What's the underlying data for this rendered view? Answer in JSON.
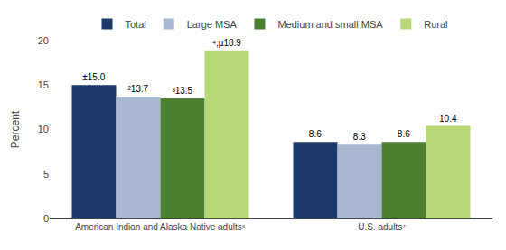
{
  "chart_data": {
    "type": "bar",
    "categories": [
      "American Indian and Alaska Native adults⁶",
      "U.S. adults⁷"
    ],
    "series": [
      {
        "name": "Total",
        "color": "#1b3a6b",
        "values": [
          15.0,
          8.6
        ],
        "value_labels": [
          "±15.0",
          "8.6"
        ]
      },
      {
        "name": "Large MSA",
        "color": "#a8b8d0",
        "values": [
          13.7,
          8.3
        ],
        "value_labels": [
          "²13.7",
          "8.3"
        ]
      },
      {
        "name": "Medium and small MSA",
        "color": "#4a8030",
        "values": [
          13.5,
          8.6
        ],
        "value_labels": [
          "³13.5",
          "8.6"
        ]
      },
      {
        "name": "Rural",
        "color": "#b8d878",
        "values": [
          18.9,
          10.4
        ],
        "value_labels": [
          "⁴,µ18.9",
          "10.4"
        ]
      }
    ],
    "ylabel": "Percent",
    "ylim": [
      0,
      20
    ],
    "yticks": [
      0,
      5,
      10,
      15,
      20
    ],
    "grid": false,
    "legend": "top",
    "data_labels": true
  }
}
